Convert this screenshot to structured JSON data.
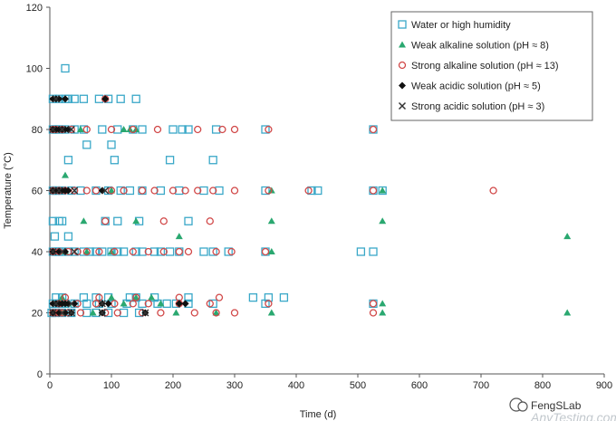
{
  "chart_data": {
    "type": "scatter",
    "xlabel": "Time (d)",
    "ylabel": "Temperature (°C)",
    "xlim": [
      0,
      900
    ],
    "ylim": [
      0,
      120
    ],
    "x_ticks": [
      0,
      100,
      200,
      300,
      400,
      500,
      600,
      700,
      800,
      900
    ],
    "y_ticks": [
      0,
      20,
      40,
      60,
      80,
      100,
      120
    ],
    "grid": false,
    "legend_position": "top-right",
    "series": [
      {
        "name": "Water or high humidity",
        "marker": "open-square",
        "color": "#3aa8c8",
        "points": [
          [
            3,
            20
          ],
          [
            8,
            20
          ],
          [
            20,
            20
          ],
          [
            35,
            20
          ],
          [
            60,
            20
          ],
          [
            75,
            20
          ],
          [
            95,
            20
          ],
          [
            120,
            20
          ],
          [
            145,
            20
          ],
          [
            5,
            23
          ],
          [
            12,
            23
          ],
          [
            18,
            23
          ],
          [
            25,
            23
          ],
          [
            40,
            23
          ],
          [
            60,
            23
          ],
          [
            80,
            23
          ],
          [
            100,
            23
          ],
          [
            125,
            23
          ],
          [
            150,
            23
          ],
          [
            175,
            23
          ],
          [
            190,
            23
          ],
          [
            205,
            23
          ],
          [
            225,
            23
          ],
          [
            265,
            23
          ],
          [
            350,
            23
          ],
          [
            525,
            23
          ],
          [
            10,
            25
          ],
          [
            20,
            25
          ],
          [
            55,
            25
          ],
          [
            75,
            25
          ],
          [
            95,
            25
          ],
          [
            130,
            25
          ],
          [
            140,
            25
          ],
          [
            170,
            25
          ],
          [
            225,
            25
          ],
          [
            330,
            25
          ],
          [
            355,
            25
          ],
          [
            380,
            25
          ],
          [
            5,
            40
          ],
          [
            10,
            40
          ],
          [
            15,
            40
          ],
          [
            20,
            40
          ],
          [
            30,
            40
          ],
          [
            40,
            40
          ],
          [
            55,
            40
          ],
          [
            65,
            40
          ],
          [
            75,
            40
          ],
          [
            85,
            40
          ],
          [
            100,
            40
          ],
          [
            110,
            40
          ],
          [
            120,
            40
          ],
          [
            140,
            40
          ],
          [
            150,
            40
          ],
          [
            170,
            40
          ],
          [
            180,
            40
          ],
          [
            195,
            40
          ],
          [
            210,
            40
          ],
          [
            250,
            40
          ],
          [
            265,
            40
          ],
          [
            290,
            40
          ],
          [
            350,
            40
          ],
          [
            505,
            40
          ],
          [
            525,
            40
          ],
          [
            8,
            45
          ],
          [
            30,
            45
          ],
          [
            5,
            50
          ],
          [
            15,
            50
          ],
          [
            20,
            50
          ],
          [
            90,
            50
          ],
          [
            110,
            50
          ],
          [
            145,
            50
          ],
          [
            225,
            50
          ],
          [
            5,
            60
          ],
          [
            10,
            60
          ],
          [
            20,
            60
          ],
          [
            35,
            60
          ],
          [
            50,
            60
          ],
          [
            75,
            60
          ],
          [
            95,
            60
          ],
          [
            115,
            60
          ],
          [
            130,
            60
          ],
          [
            150,
            60
          ],
          [
            180,
            60
          ],
          [
            210,
            60
          ],
          [
            250,
            60
          ],
          [
            275,
            60
          ],
          [
            350,
            60
          ],
          [
            425,
            60
          ],
          [
            435,
            60
          ],
          [
            525,
            60
          ],
          [
            540,
            60
          ],
          [
            30,
            70
          ],
          [
            105,
            70
          ],
          [
            195,
            70
          ],
          [
            265,
            70
          ],
          [
            60,
            75
          ],
          [
            100,
            75
          ],
          [
            5,
            80
          ],
          [
            10,
            80
          ],
          [
            15,
            80
          ],
          [
            25,
            80
          ],
          [
            40,
            80
          ],
          [
            55,
            80
          ],
          [
            85,
            80
          ],
          [
            110,
            80
          ],
          [
            135,
            80
          ],
          [
            150,
            80
          ],
          [
            200,
            80
          ],
          [
            215,
            80
          ],
          [
            225,
            80
          ],
          [
            270,
            80
          ],
          [
            350,
            80
          ],
          [
            525,
            80
          ],
          [
            5,
            90
          ],
          [
            15,
            90
          ],
          [
            25,
            90
          ],
          [
            30,
            90
          ],
          [
            40,
            90
          ],
          [
            55,
            90
          ],
          [
            80,
            90
          ],
          [
            95,
            90
          ],
          [
            115,
            90
          ],
          [
            140,
            90
          ],
          [
            25,
            100
          ]
        ]
      },
      {
        "name": "Weak alkaline solution (pH ≈ 8)",
        "marker": "filled-triangle",
        "color": "#2aa870",
        "points": [
          [
            10,
            20
          ],
          [
            20,
            20
          ],
          [
            70,
            20
          ],
          [
            205,
            20
          ],
          [
            270,
            20
          ],
          [
            360,
            20
          ],
          [
            540,
            20
          ],
          [
            840,
            20
          ],
          [
            15,
            23
          ],
          [
            30,
            23
          ],
          [
            120,
            23
          ],
          [
            180,
            23
          ],
          [
            540,
            23
          ],
          [
            20,
            25
          ],
          [
            100,
            25
          ],
          [
            140,
            25
          ],
          [
            165,
            25
          ],
          [
            25,
            40
          ],
          [
            60,
            40
          ],
          [
            100,
            40
          ],
          [
            360,
            40
          ],
          [
            210,
            45
          ],
          [
            840,
            45
          ],
          [
            55,
            50
          ],
          [
            140,
            50
          ],
          [
            360,
            50
          ],
          [
            540,
            50
          ],
          [
            25,
            60
          ],
          [
            100,
            60
          ],
          [
            360,
            60
          ],
          [
            540,
            60
          ],
          [
            25,
            65
          ],
          [
            20,
            80
          ],
          [
            50,
            80
          ],
          [
            120,
            80
          ],
          [
            130,
            80
          ],
          [
            140,
            80
          ]
        ]
      },
      {
        "name": "Strong alkaline solution (pH ≈ 13)",
        "marker": "open-circle",
        "color": "#d14848",
        "points": [
          [
            5,
            20
          ],
          [
            10,
            20
          ],
          [
            15,
            20
          ],
          [
            20,
            20
          ],
          [
            30,
            20
          ],
          [
            50,
            20
          ],
          [
            90,
            20
          ],
          [
            110,
            20
          ],
          [
            150,
            20
          ],
          [
            180,
            20
          ],
          [
            235,
            20
          ],
          [
            270,
            20
          ],
          [
            300,
            20
          ],
          [
            525,
            20
          ],
          [
            15,
            23
          ],
          [
            45,
            23
          ],
          [
            75,
            23
          ],
          [
            105,
            23
          ],
          [
            135,
            23
          ],
          [
            160,
            23
          ],
          [
            210,
            23
          ],
          [
            260,
            23
          ],
          [
            355,
            23
          ],
          [
            525,
            23
          ],
          [
            25,
            25
          ],
          [
            80,
            25
          ],
          [
            140,
            25
          ],
          [
            210,
            25
          ],
          [
            275,
            25
          ],
          [
            5,
            40
          ],
          [
            15,
            40
          ],
          [
            30,
            40
          ],
          [
            45,
            40
          ],
          [
            60,
            40
          ],
          [
            80,
            40
          ],
          [
            105,
            40
          ],
          [
            135,
            40
          ],
          [
            160,
            40
          ],
          [
            185,
            40
          ],
          [
            210,
            40
          ],
          [
            225,
            40
          ],
          [
            270,
            40
          ],
          [
            295,
            40
          ],
          [
            350,
            40
          ],
          [
            90,
            50
          ],
          [
            185,
            50
          ],
          [
            260,
            50
          ],
          [
            5,
            60
          ],
          [
            15,
            60
          ],
          [
            25,
            60
          ],
          [
            40,
            60
          ],
          [
            60,
            60
          ],
          [
            75,
            60
          ],
          [
            100,
            60
          ],
          [
            120,
            60
          ],
          [
            150,
            60
          ],
          [
            170,
            60
          ],
          [
            200,
            60
          ],
          [
            220,
            60
          ],
          [
            240,
            60
          ],
          [
            265,
            60
          ],
          [
            300,
            60
          ],
          [
            355,
            60
          ],
          [
            420,
            60
          ],
          [
            525,
            60
          ],
          [
            720,
            60
          ],
          [
            5,
            80
          ],
          [
            10,
            80
          ],
          [
            20,
            80
          ],
          [
            35,
            80
          ],
          [
            60,
            80
          ],
          [
            100,
            80
          ],
          [
            135,
            80
          ],
          [
            175,
            80
          ],
          [
            240,
            80
          ],
          [
            280,
            80
          ],
          [
            300,
            80
          ],
          [
            355,
            80
          ],
          [
            525,
            80
          ],
          [
            90,
            90
          ]
        ]
      },
      {
        "name": "Weak acidic solution (pH ≈ 5)",
        "marker": "filled-diamond",
        "color": "#111111",
        "points": [
          [
            5,
            20
          ],
          [
            15,
            20
          ],
          [
            25,
            20
          ],
          [
            35,
            20
          ],
          [
            85,
            20
          ],
          [
            155,
            20
          ],
          [
            5,
            23
          ],
          [
            10,
            23
          ],
          [
            15,
            23
          ],
          [
            20,
            23
          ],
          [
            25,
            23
          ],
          [
            30,
            23
          ],
          [
            40,
            23
          ],
          [
            85,
            23
          ],
          [
            95,
            23
          ],
          [
            210,
            23
          ],
          [
            220,
            23
          ],
          [
            5,
            40
          ],
          [
            15,
            40
          ],
          [
            25,
            40
          ],
          [
            5,
            60
          ],
          [
            10,
            60
          ],
          [
            15,
            60
          ],
          [
            20,
            60
          ],
          [
            25,
            60
          ],
          [
            30,
            60
          ],
          [
            85,
            60
          ],
          [
            5,
            80
          ],
          [
            10,
            80
          ],
          [
            15,
            80
          ],
          [
            20,
            80
          ],
          [
            25,
            80
          ],
          [
            30,
            80
          ],
          [
            5,
            90
          ],
          [
            10,
            90
          ],
          [
            15,
            90
          ],
          [
            25,
            90
          ],
          [
            90,
            90
          ]
        ]
      },
      {
        "name": "Strong acidic solution (pH ≈ 3)",
        "marker": "cross",
        "color": "#333333",
        "points": [
          [
            5,
            20
          ],
          [
            20,
            20
          ],
          [
            35,
            20
          ],
          [
            85,
            20
          ],
          [
            155,
            20
          ],
          [
            10,
            23
          ],
          [
            35,
            23
          ],
          [
            85,
            23
          ],
          [
            5,
            40
          ],
          [
            20,
            40
          ],
          [
            40,
            40
          ],
          [
            5,
            60
          ],
          [
            15,
            60
          ],
          [
            40,
            60
          ],
          [
            90,
            60
          ],
          [
            5,
            80
          ],
          [
            20,
            80
          ],
          [
            35,
            80
          ],
          [
            10,
            90
          ]
        ]
      }
    ]
  },
  "watermark": {
    "logo_text": "FengSLab",
    "site_text": "AnyTesting.com"
  }
}
